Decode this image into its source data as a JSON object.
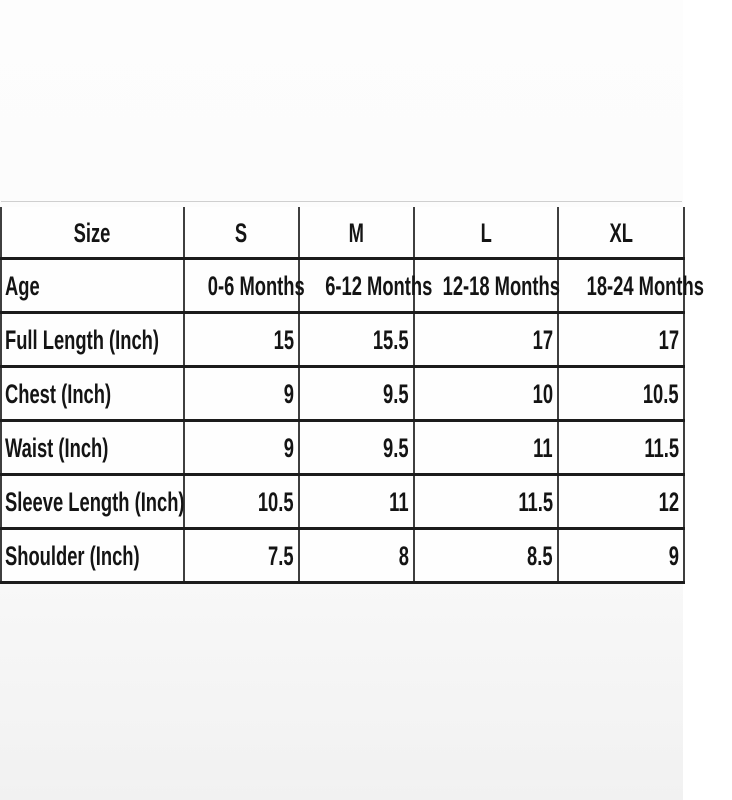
{
  "page": {
    "colors": {
      "bg_top": "#fdfdfd",
      "bg_bottom": "#f1f1f1",
      "line_heavy": "#1c1c1c",
      "line_vertical": "#3f3f3f",
      "line_faint": "#cfcfcf",
      "cell_bg": "#fefefe",
      "text": "#141414"
    }
  },
  "size_chart": {
    "header": [
      "Size",
      "S",
      "M",
      "L",
      "XL"
    ],
    "rows": [
      {
        "label": "Age",
        "values": [
          "0-6 Months",
          "6-12 Months",
          "12-18 Months",
          "18-24 Months"
        ]
      },
      {
        "label": "Full Length (Inch)",
        "values": [
          "15",
          "15.5",
          "17",
          "17"
        ]
      },
      {
        "label": "Chest (Inch)",
        "values": [
          "9",
          "9.5",
          "10",
          "10.5"
        ]
      },
      {
        "label": "Waist (Inch)",
        "values": [
          "9",
          "9.5",
          "11",
          "11.5"
        ]
      },
      {
        "label": "Sleeve Length (Inch)",
        "values": [
          "10.5",
          "11",
          "11.5",
          "12"
        ]
      },
      {
        "label": "Shoulder (Inch)",
        "values": [
          "7.5",
          "8",
          "8.5",
          "9"
        ]
      }
    ]
  },
  "chart_data": {
    "type": "table",
    "columns": [
      "Size",
      "S",
      "M",
      "L",
      "XL"
    ],
    "rows": [
      [
        "Age",
        "0-6 Months",
        "6-12 Months",
        "12-18 Months",
        "18-24 Months"
      ],
      [
        "Full Length (Inch)",
        15,
        15.5,
        17,
        17
      ],
      [
        "Chest (Inch)",
        9,
        9.5,
        10,
        10.5
      ],
      [
        "Waist (Inch)",
        9,
        9.5,
        11,
        11.5
      ],
      [
        "Sleeve Length (Inch)",
        10.5,
        11,
        11.5,
        12
      ],
      [
        "Shoulder (Inch)",
        7.5,
        8,
        8.5,
        9
      ]
    ],
    "units": "Inch",
    "layout": "header row on top, measurement labels in first column, numeric values right-aligned, age range row centered"
  }
}
